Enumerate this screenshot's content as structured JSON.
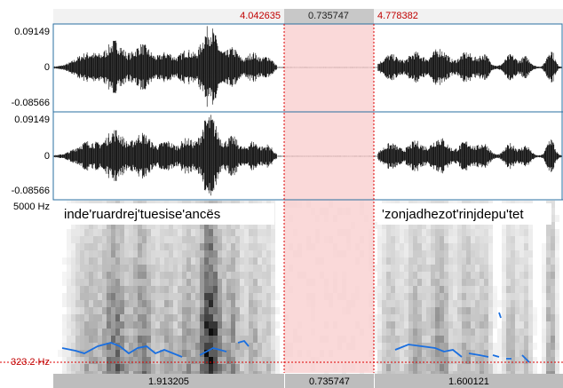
{
  "header": {
    "selection_start": "4.042635",
    "selection_duration": "0.735747",
    "selection_end": "4.778382"
  },
  "channels": [
    {
      "max": "0.09149",
      "zero": "0",
      "min": "-0.08566"
    },
    {
      "max": "0.09149",
      "zero": "0",
      "min": "-0.08566"
    }
  ],
  "spectrogram": {
    "max_freq": "5000 Hz",
    "cursor_freq": "323.2 Hz"
  },
  "annotations": [
    "inde'ruardrej'tuesise'ancës",
    "'zonjadhezot'rinjdepu'tet"
  ],
  "footer": {
    "before": "1.913205",
    "selection": "0.735747",
    "after": "1.600121"
  }
}
